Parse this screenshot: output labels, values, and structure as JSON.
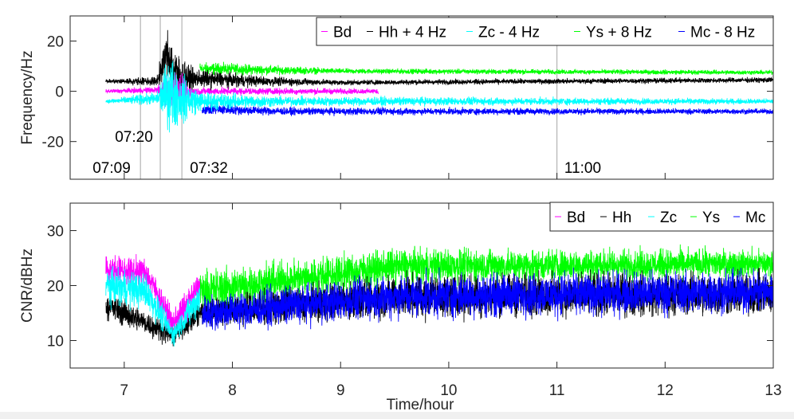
{
  "chart_data": [
    {
      "type": "line",
      "xlabel": "",
      "ylabel": "Frequency/Hz",
      "xlim": [
        6.5,
        13
      ],
      "ylim": [
        -35,
        30
      ],
      "yticks": [
        -20,
        0,
        20
      ],
      "grid": false,
      "legend_placement": "top-right",
      "legend": [
        "Bd",
        "Hh + 4 Hz",
        "Zc - 4 Hz",
        "Ys + 8 Hz",
        "Mc - 8 Hz"
      ],
      "vlines": [
        {
          "x": 7.15,
          "label": "07:09"
        },
        {
          "x": 7.333,
          "label": "07:20"
        },
        {
          "x": 7.533,
          "label": "07:32"
        },
        {
          "x": 11.0,
          "label": "11:00"
        }
      ],
      "series": [
        {
          "name": "Ys + 8 Hz",
          "color": "#00ff00",
          "knots_time_mean_spread": [
            [
              7.7,
              9,
              2
            ],
            [
              8.3,
              8.5,
              1.5
            ],
            [
              9,
              8,
              0.8
            ],
            [
              13,
              7.5,
              0.7
            ]
          ]
        },
        {
          "name": "Mc - 8 Hz",
          "color": "#0000ff",
          "knots_time_mean_spread": [
            [
              7.72,
              -7,
              1.8
            ],
            [
              8.5,
              -8,
              1.2
            ],
            [
              13,
              -8,
              0.8
            ]
          ]
        },
        {
          "name": "Hh + 4 Hz",
          "color": "#000000",
          "knots_time_mean_spread": [
            [
              6.83,
              4,
              0.6
            ],
            [
              7.3,
              4,
              1.5
            ],
            [
              7.4,
              15,
              8
            ],
            [
              7.5,
              5,
              8
            ],
            [
              7.65,
              5,
              3
            ],
            [
              8.3,
              4,
              1.5
            ],
            [
              9,
              3.5,
              0.8
            ],
            [
              13,
              4.5,
              0.8
            ]
          ]
        },
        {
          "name": "Bd",
          "color": "#ff00ff",
          "knots_time_mean_spread": [
            [
              6.83,
              0,
              0.6
            ],
            [
              7.3,
              0.5,
              1
            ],
            [
              7.38,
              0,
              5
            ],
            [
              7.55,
              0,
              5
            ],
            [
              7.62,
              0,
              1.2
            ],
            [
              9.35,
              0,
              0.8
            ]
          ]
        },
        {
          "name": "Zc - 4 Hz",
          "color": "#00ffff",
          "knots_time_mean_spread": [
            [
              6.83,
              -4,
              0.6
            ],
            [
              7.3,
              -3,
              2
            ],
            [
              7.42,
              0,
              12
            ],
            [
              7.52,
              -3,
              8
            ],
            [
              7.7,
              -4,
              3
            ],
            [
              8.5,
              -4,
              1.5
            ],
            [
              13,
              -4,
              0.8
            ]
          ]
        }
      ]
    },
    {
      "type": "line",
      "xlabel": "Time/hour",
      "ylabel": "CNR/dBHz",
      "xlim": [
        6.5,
        13
      ],
      "ylim": [
        5,
        35
      ],
      "xticks": [
        7,
        8,
        9,
        10,
        11,
        12,
        13
      ],
      "yticks": [
        10,
        20,
        30
      ],
      "grid": false,
      "legend_placement": "top-right",
      "legend": [
        "Bd",
        "Hh",
        "Zc",
        "Ys",
        "Mc"
      ],
      "series": [
        {
          "name": "Ys",
          "color": "#00ff00",
          "knots_time_mean_spread": [
            [
              7.7,
              19,
              3
            ],
            [
              9.5,
              23.5,
              2.5
            ],
            [
              13,
              24,
              2
            ]
          ]
        },
        {
          "name": "Hh",
          "color": "#000000",
          "knots_time_mean_spread": [
            [
              6.83,
              16.5,
              2
            ],
            [
              7.45,
              11,
              1.5
            ],
            [
              7.7,
              15,
              2
            ],
            [
              9.5,
              18,
              3
            ],
            [
              13,
              18.5,
              3
            ]
          ]
        },
        {
          "name": "Mc",
          "color": "#0000ff",
          "knots_time_mean_spread": [
            [
              7.72,
              15,
              2.5
            ],
            [
              9.5,
              18,
              3
            ],
            [
              13,
              19,
              3
            ]
          ]
        },
        {
          "name": "Bd",
          "color": "#ff00ff",
          "knots_time_mean_spread": [
            [
              6.83,
              23,
              2
            ],
            [
              7.2,
              22.5,
              2
            ],
            [
              7.45,
              13,
              2
            ],
            [
              7.7,
              20,
              2
            ]
          ]
        },
        {
          "name": "Zc",
          "color": "#00ffff",
          "knots_time_mean_spread": [
            [
              6.83,
              20,
              2.5
            ],
            [
              7.2,
              19,
              2.5
            ],
            [
              7.45,
              11,
              1.5
            ],
            [
              7.7,
              18,
              2.5
            ]
          ]
        }
      ]
    }
  ]
}
